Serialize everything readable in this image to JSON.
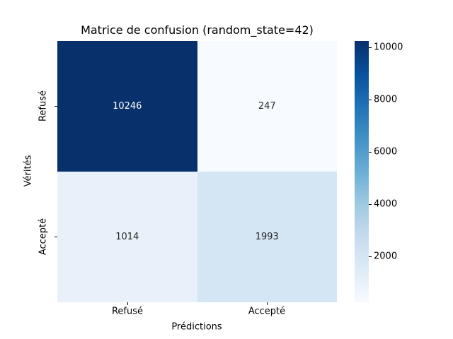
{
  "chart_data": {
    "type": "heatmap",
    "title": "Matrice de confusion (random_state=42)",
    "xlabel": "Prédictions",
    "ylabel": "Vérités",
    "x_categories": [
      "Refusé",
      "Accepté"
    ],
    "y_categories": [
      "Refusé",
      "Accepté"
    ],
    "values": [
      [
        10246,
        247
      ],
      [
        1014,
        1993
      ]
    ],
    "vmin": 247,
    "vmax": 10246,
    "colormap": "Blues",
    "colormap_stops": [
      "#f7fbff",
      "#deebf7",
      "#c6dbef",
      "#9ecae1",
      "#6baed6",
      "#4292c6",
      "#2171b5",
      "#08519c",
      "#08306b"
    ],
    "colorbar_ticks": [
      2000,
      4000,
      6000,
      8000,
      10000
    ],
    "cell_colors": [
      [
        "#08306b",
        "#f7fbff"
      ],
      [
        "#e8f1fa",
        "#d4e5f4"
      ]
    ],
    "cell_text_colors": [
      [
        "#ffffff",
        "#262626"
      ],
      [
        "#262626",
        "#262626"
      ]
    ],
    "background_color": "#ffffff",
    "legend_position": "right-colorbar",
    "grid": false
  }
}
